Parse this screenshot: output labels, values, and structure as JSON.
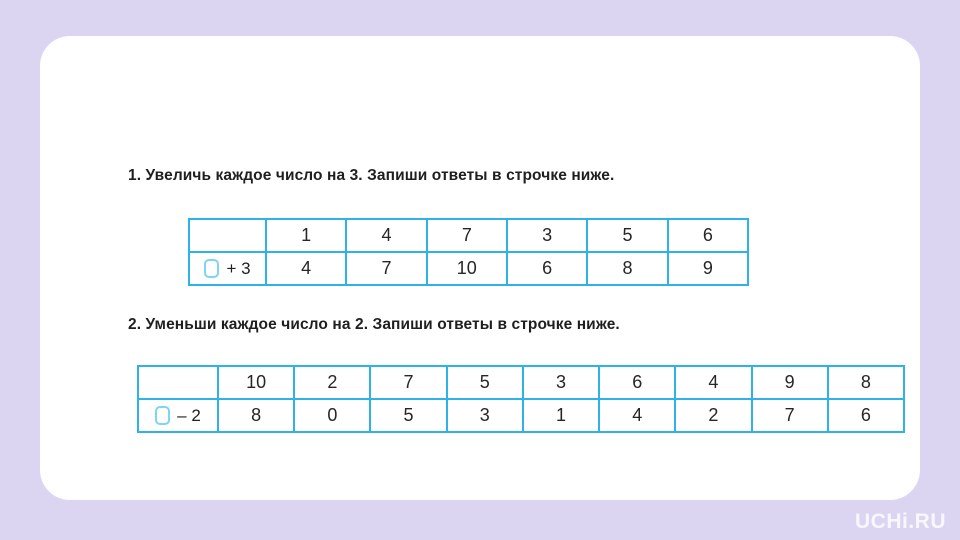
{
  "colors": {
    "page_background": "#DCD5F1",
    "card_background": "#FFFFFF",
    "table_border": "#2EB2E8",
    "answer_green": "#90BF5E",
    "icon_border": "#7FD4F1",
    "title_text": "#1F1F1F"
  },
  "tasks": [
    {
      "title": "1. Увеличь каждое число на 3. Запиши ответы в строчке ниже.",
      "operation_label": "+ 3",
      "numbers": [
        "1",
        "4",
        "7",
        "3",
        "5",
        "6"
      ],
      "answers": [
        "4",
        "7",
        "10",
        "6",
        "8",
        "9"
      ]
    },
    {
      "title": "2. Уменьши каждое число на 2. Запиши ответы в строчке ниже.",
      "operation_label": "– 2",
      "numbers": [
        "10",
        "2",
        "7",
        "5",
        "3",
        "6",
        "4",
        "9",
        "8"
      ],
      "answers": [
        "8",
        "0",
        "5",
        "3",
        "1",
        "4",
        "2",
        "7",
        "6"
      ]
    }
  ],
  "watermark": "UCHi.RU"
}
